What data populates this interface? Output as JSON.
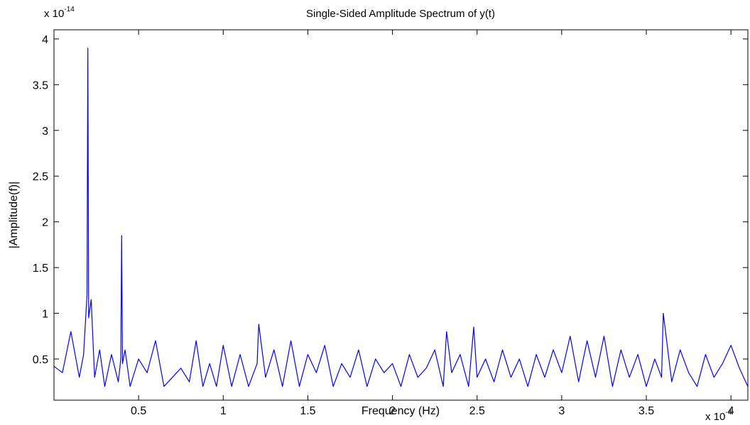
{
  "chart_data": {
    "type": "line",
    "title": "Single-Sided Amplitude Spectrum of y(t)",
    "xlabel": "Frequency (Hz)",
    "ylabel": "|Amplitude(f)|",
    "x_multiplier": {
      "prefix": "x 10",
      "exponent": "-4"
    },
    "y_multiplier": {
      "prefix": "x 10",
      "exponent": "-14"
    },
    "xlim": [
      0.0,
      4.1
    ],
    "ylim": [
      0.05,
      4.1
    ],
    "xticks": [
      0.5,
      1,
      1.5,
      2,
      2.5,
      3,
      3.5,
      4
    ],
    "xtick_labels": [
      "0.5",
      "1",
      "1.5",
      "2",
      "2.5",
      "3",
      "3.5",
      "4"
    ],
    "yticks": [
      0.5,
      1,
      1.5,
      2,
      2.5,
      3,
      3.5,
      4
    ],
    "ytick_labels": [
      "0.5",
      "1",
      "1.5",
      "2",
      "2.5",
      "3",
      "3.5",
      "4"
    ],
    "grid": false,
    "line_color": "#0000ff",
    "series": [
      {
        "x": [
          0.0,
          0.05,
          0.1,
          0.15,
          0.175,
          0.195,
          0.2,
          0.205,
          0.22,
          0.24,
          0.27,
          0.3,
          0.34,
          0.38,
          0.395,
          0.4,
          0.405,
          0.42,
          0.45,
          0.5,
          0.55,
          0.6,
          0.65,
          0.7,
          0.75,
          0.8,
          0.84,
          0.88,
          0.92,
          0.96,
          1.0,
          1.05,
          1.1,
          1.15,
          1.2,
          1.21,
          1.25,
          1.3,
          1.35,
          1.4,
          1.45,
          1.5,
          1.55,
          1.6,
          1.65,
          1.7,
          1.75,
          1.8,
          1.85,
          1.9,
          1.95,
          2.0,
          2.05,
          2.1,
          2.15,
          2.2,
          2.25,
          2.3,
          2.32,
          2.35,
          2.4,
          2.45,
          2.48,
          2.5,
          2.55,
          2.6,
          2.65,
          2.7,
          2.75,
          2.8,
          2.85,
          2.9,
          2.95,
          3.0,
          3.05,
          3.1,
          3.15,
          3.2,
          3.25,
          3.3,
          3.35,
          3.4,
          3.45,
          3.5,
          3.55,
          3.59,
          3.6,
          3.65,
          3.7,
          3.75,
          3.8,
          3.85,
          3.9,
          3.95,
          4.0,
          4.05,
          4.1
        ],
        "y": [
          0.42,
          0.35,
          0.8,
          0.3,
          0.55,
          1.2,
          3.9,
          0.95,
          1.15,
          0.3,
          0.6,
          0.2,
          0.55,
          0.25,
          0.5,
          1.85,
          0.45,
          0.6,
          0.2,
          0.5,
          0.35,
          0.7,
          0.2,
          0.3,
          0.4,
          0.25,
          0.7,
          0.2,
          0.45,
          0.2,
          0.65,
          0.2,
          0.55,
          0.2,
          0.45,
          0.88,
          0.3,
          0.6,
          0.2,
          0.7,
          0.2,
          0.55,
          0.35,
          0.65,
          0.2,
          0.45,
          0.3,
          0.6,
          0.2,
          0.5,
          0.35,
          0.45,
          0.2,
          0.55,
          0.3,
          0.4,
          0.6,
          0.2,
          0.8,
          0.35,
          0.55,
          0.2,
          0.85,
          0.3,
          0.5,
          0.25,
          0.6,
          0.3,
          0.5,
          0.2,
          0.55,
          0.3,
          0.6,
          0.35,
          0.75,
          0.25,
          0.7,
          0.3,
          0.75,
          0.2,
          0.6,
          0.3,
          0.55,
          0.2,
          0.5,
          0.3,
          1.0,
          0.25,
          0.6,
          0.35,
          0.2,
          0.55,
          0.3,
          0.45,
          0.65,
          0.4,
          0.2
        ]
      }
    ]
  }
}
